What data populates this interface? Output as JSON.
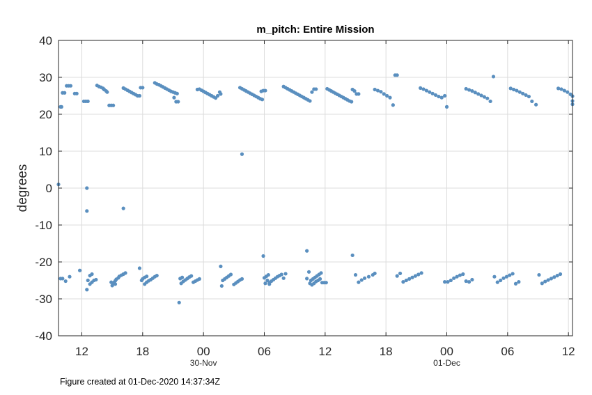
{
  "footer": "Figure created at 01-Dec-2020 14:37:34Z",
  "chart_data": {
    "type": "scatter",
    "title": "m_pitch: Entire Mission",
    "xlabel": "",
    "ylabel": "degrees",
    "x_unit": "hours relative to 30-Nov-2020 00:00",
    "xlim": [
      -14.3,
      36.4
    ],
    "ylim": [
      -40,
      40
    ],
    "grid": true,
    "color": "#5a8fbf",
    "xticks": [
      {
        "value": -12,
        "label": "12",
        "sub": ""
      },
      {
        "value": -6,
        "label": "18",
        "sub": ""
      },
      {
        "value": 0,
        "label": "00",
        "sub": "30-Nov"
      },
      {
        "value": 6,
        "label": "06",
        "sub": ""
      },
      {
        "value": 12,
        "label": "12",
        "sub": ""
      },
      {
        "value": 18,
        "label": "18",
        "sub": ""
      },
      {
        "value": 24,
        "label": "00",
        "sub": "01-Dec"
      },
      {
        "value": 30,
        "label": "06",
        "sub": ""
      },
      {
        "value": 36,
        "label": "12",
        "sub": ""
      }
    ],
    "yticks": [
      -40,
      -30,
      -20,
      -10,
      0,
      10,
      20,
      30,
      40
    ],
    "points": [
      [
        -14.3,
        1
      ],
      [
        -14.1,
        22
      ],
      [
        -14.0,
        22
      ],
      [
        -13.9,
        25.8
      ],
      [
        -13.7,
        25.8
      ],
      [
        -13.5,
        27.7
      ],
      [
        -13.3,
        27.7
      ],
      [
        -13.1,
        27.7
      ],
      [
        -12.7,
        25.6
      ],
      [
        -12.5,
        25.6
      ],
      [
        -11.8,
        23.5
      ],
      [
        -11.6,
        23.5
      ],
      [
        -11.4,
        23.5
      ],
      [
        -10.5,
        27.8
      ],
      [
        -10.3,
        27.5
      ],
      [
        -10.1,
        27.3
      ],
      [
        -9.9,
        27
      ],
      [
        -9.8,
        26.7
      ],
      [
        -9.6,
        26.3
      ],
      [
        -9.5,
        26
      ],
      [
        -9.3,
        22.4
      ],
      [
        -9.1,
        22.4
      ],
      [
        -8.9,
        22.4
      ],
      [
        -7.9,
        27.1
      ],
      [
        -7.7,
        26.8
      ],
      [
        -7.5,
        26.5
      ],
      [
        -7.3,
        26.2
      ],
      [
        -7.1,
        25.9
      ],
      [
        -6.9,
        25.6
      ],
      [
        -6.7,
        25.3
      ],
      [
        -6.5,
        25
      ],
      [
        -6.3,
        25
      ],
      [
        -6.2,
        27.2
      ],
      [
        -6.0,
        27.2
      ],
      [
        -4.8,
        28.5
      ],
      [
        -4.6,
        28.2
      ],
      [
        -4.4,
        28
      ],
      [
        -4.2,
        27.7
      ],
      [
        -4.0,
        27.4
      ],
      [
        -3.8,
        27.1
      ],
      [
        -3.6,
        26.8
      ],
      [
        -3.4,
        26.5
      ],
      [
        -3.2,
        26.2
      ],
      [
        -3.0,
        26
      ],
      [
        -2.8,
        25.8
      ],
      [
        -2.6,
        25.6
      ],
      [
        -2.9,
        24.5
      ],
      [
        -2.7,
        23.4
      ],
      [
        -2.5,
        23.4
      ],
      [
        -0.6,
        26.7
      ],
      [
        -0.4,
        26.8
      ],
      [
        -0.2,
        26.5
      ],
      [
        0.0,
        26.2
      ],
      [
        0.2,
        25.9
      ],
      [
        0.4,
        25.6
      ],
      [
        0.6,
        25.3
      ],
      [
        0.8,
        25
      ],
      [
        1.0,
        24.7
      ],
      [
        1.2,
        24.4
      ],
      [
        1.4,
        25
      ],
      [
        1.6,
        26
      ],
      [
        1.7,
        25.5
      ],
      [
        3.6,
        27.2
      ],
      [
        3.8,
        26.9
      ],
      [
        4.0,
        26.6
      ],
      [
        4.2,
        26.3
      ],
      [
        4.4,
        26
      ],
      [
        4.6,
        25.7
      ],
      [
        4.8,
        25.4
      ],
      [
        5.0,
        25.1
      ],
      [
        5.2,
        24.8
      ],
      [
        5.4,
        24.5
      ],
      [
        5.6,
        24.2
      ],
      [
        5.8,
        24
      ],
      [
        5.7,
        26.2
      ],
      [
        5.9,
        26.4
      ],
      [
        6.1,
        26.4
      ],
      [
        7.9,
        27.5
      ],
      [
        8.1,
        27.2
      ],
      [
        8.3,
        26.9
      ],
      [
        8.5,
        26.6
      ],
      [
        8.7,
        26.3
      ],
      [
        8.9,
        26
      ],
      [
        9.1,
        25.7
      ],
      [
        9.3,
        25.4
      ],
      [
        9.5,
        25.1
      ],
      [
        9.7,
        24.8
      ],
      [
        9.9,
        24.5
      ],
      [
        10.1,
        24.2
      ],
      [
        10.3,
        23.9
      ],
      [
        10.5,
        23.6
      ],
      [
        10.7,
        26
      ],
      [
        10.9,
        26.8
      ],
      [
        11.1,
        26.8
      ],
      [
        12.2,
        26.9
      ],
      [
        12.4,
        26.6
      ],
      [
        12.6,
        26.3
      ],
      [
        12.8,
        26
      ],
      [
        13.0,
        25.7
      ],
      [
        13.2,
        25.4
      ],
      [
        13.4,
        25.1
      ],
      [
        13.6,
        24.8
      ],
      [
        13.8,
        24.5
      ],
      [
        14.0,
        24.2
      ],
      [
        14.2,
        23.9
      ],
      [
        14.4,
        23.6
      ],
      [
        14.6,
        23.4
      ],
      [
        14.7,
        26.7
      ],
      [
        14.9,
        26.3
      ],
      [
        15.1,
        25.5
      ],
      [
        15.3,
        25.5
      ],
      [
        16.9,
        26.7
      ],
      [
        17.2,
        26.4
      ],
      [
        17.5,
        26.1
      ],
      [
        17.8,
        25.5
      ],
      [
        18.1,
        25
      ],
      [
        18.4,
        24.5
      ],
      [
        18.7,
        22.5
      ],
      [
        18.9,
        30.6
      ],
      [
        19.1,
        30.6
      ],
      [
        21.4,
        27.1
      ],
      [
        21.7,
        26.8
      ],
      [
        22.0,
        26.4
      ],
      [
        22.3,
        26
      ],
      [
        22.6,
        25.6
      ],
      [
        22.9,
        25.2
      ],
      [
        23.2,
        24.8
      ],
      [
        23.5,
        24.5
      ],
      [
        23.8,
        25
      ],
      [
        24.0,
        22
      ],
      [
        25.9,
        26.9
      ],
      [
        26.2,
        26.6
      ],
      [
        26.5,
        26.3
      ],
      [
        26.8,
        25.9
      ],
      [
        27.1,
        25.5
      ],
      [
        27.4,
        25.1
      ],
      [
        27.7,
        24.7
      ],
      [
        28.0,
        24.3
      ],
      [
        28.3,
        23.5
      ],
      [
        28.6,
        30.2
      ],
      [
        30.3,
        27
      ],
      [
        30.6,
        26.7
      ],
      [
        30.9,
        26.4
      ],
      [
        31.2,
        26
      ],
      [
        31.5,
        25.6
      ],
      [
        31.8,
        25.2
      ],
      [
        32.1,
        24.8
      ],
      [
        32.4,
        23.5
      ],
      [
        32.8,
        22.6
      ],
      [
        35.0,
        27
      ],
      [
        35.3,
        26.8
      ],
      [
        35.6,
        26.4
      ],
      [
        35.9,
        26
      ],
      [
        36.2,
        25.4
      ],
      [
        36.4,
        24.9
      ],
      [
        36.6,
        23.6
      ],
      [
        36.8,
        22.7
      ],
      [
        -11.5,
        0
      ],
      [
        -11.5,
        -6.2
      ],
      [
        -7.9,
        -5.5
      ],
      [
        3.8,
        9.2
      ],
      [
        5.9,
        -18.4
      ],
      [
        10.2,
        -17
      ],
      [
        14.7,
        -18.2
      ],
      [
        -14.1,
        -24.5
      ],
      [
        -13.9,
        -24.5
      ],
      [
        -13.6,
        -25.2
      ],
      [
        -13.2,
        -24
      ],
      [
        -12.2,
        -22.3
      ],
      [
        -11.5,
        -27.5
      ],
      [
        -11.4,
        -25
      ],
      [
        -11.2,
        -23.7
      ],
      [
        -11.0,
        -23.3
      ],
      [
        -11.2,
        -26
      ],
      [
        -11.0,
        -25.5
      ],
      [
        -10.8,
        -25
      ],
      [
        -10.6,
        -24.8
      ],
      [
        -9.0,
        -26.4
      ],
      [
        -8.9,
        -25.9
      ],
      [
        -8.8,
        -25.5
      ],
      [
        -8.7,
        -25.1
      ],
      [
        -8.6,
        -24.7
      ],
      [
        -8.4,
        -24.3
      ],
      [
        -8.3,
        -23.9
      ],
      [
        -8.1,
        -23.6
      ],
      [
        -7.9,
        -23.3
      ],
      [
        -7.7,
        -23
      ],
      [
        -9.1,
        -25.5
      ],
      [
        -8.7,
        -26
      ],
      [
        -6.3,
        -21.7
      ],
      [
        -6.1,
        -25
      ],
      [
        -6.0,
        -24.6
      ],
      [
        -5.8,
        -24.2
      ],
      [
        -5.6,
        -23.9
      ],
      [
        -5.8,
        -26
      ],
      [
        -5.6,
        -25.5
      ],
      [
        -5.4,
        -25.1
      ],
      [
        -5.2,
        -24.8
      ],
      [
        -5.0,
        -24.4
      ],
      [
        -4.8,
        -24
      ],
      [
        -4.6,
        -23.7
      ],
      [
        -2.4,
        -31
      ],
      [
        -2.2,
        -25.8
      ],
      [
        -2.0,
        -25.3
      ],
      [
        -1.8,
        -24.9
      ],
      [
        -1.6,
        -24.5
      ],
      [
        -1.4,
        -24.1
      ],
      [
        -1.2,
        -23.8
      ],
      [
        -1.0,
        -25.5
      ],
      [
        -0.8,
        -25.2
      ],
      [
        -0.6,
        -24.9
      ],
      [
        -0.4,
        -24.6
      ],
      [
        -2.3,
        -24.5
      ],
      [
        -2.1,
        -24.2
      ],
      [
        1.7,
        -21.2
      ],
      [
        1.8,
        -26.5
      ],
      [
        1.9,
        -25
      ],
      [
        2.1,
        -24.6
      ],
      [
        2.3,
        -24.2
      ],
      [
        2.5,
        -23.8
      ],
      [
        2.7,
        -23.4
      ],
      [
        3.0,
        -26.1
      ],
      [
        3.2,
        -25.7
      ],
      [
        3.4,
        -25.3
      ],
      [
        3.6,
        -24.9
      ],
      [
        3.8,
        -24.6
      ],
      [
        6.0,
        -24.3
      ],
      [
        6.2,
        -23.9
      ],
      [
        6.4,
        -23.5
      ],
      [
        6.3,
        -25
      ],
      [
        6.5,
        -25.6
      ],
      [
        6.7,
        -25.2
      ],
      [
        6.9,
        -24.8
      ],
      [
        7.1,
        -24.4
      ],
      [
        7.3,
        -24
      ],
      [
        7.5,
        -23.7
      ],
      [
        7.7,
        -23.4
      ],
      [
        7.9,
        -24.4
      ],
      [
        8.1,
        -23.2
      ],
      [
        6.1,
        -25.8
      ],
      [
        6.5,
        -26
      ],
      [
        10.2,
        -24.5
      ],
      [
        10.4,
        -22.7
      ],
      [
        10.6,
        -25
      ],
      [
        10.8,
        -24.6
      ],
      [
        11.0,
        -24.2
      ],
      [
        11.2,
        -23.8
      ],
      [
        11.4,
        -23.4
      ],
      [
        11.6,
        -23
      ],
      [
        10.5,
        -25.8
      ],
      [
        10.7,
        -26.2
      ],
      [
        10.9,
        -25.8
      ],
      [
        11.1,
        -25.3
      ],
      [
        11.3,
        -25
      ],
      [
        11.5,
        -24.6
      ],
      [
        11.7,
        -25.6
      ],
      [
        11.9,
        -25.6
      ],
      [
        12.1,
        -25.6
      ],
      [
        15.0,
        -23.5
      ],
      [
        15.3,
        -25.5
      ],
      [
        15.6,
        -24.9
      ],
      [
        15.9,
        -24.4
      ],
      [
        16.3,
        -24
      ],
      [
        16.7,
        -23.5
      ],
      [
        16.9,
        -23.1
      ],
      [
        19.1,
        -23.8
      ],
      [
        19.4,
        -23.1
      ],
      [
        19.7,
        -25.4
      ],
      [
        20.0,
        -25
      ],
      [
        20.3,
        -24.6
      ],
      [
        20.6,
        -24.2
      ],
      [
        20.9,
        -23.8
      ],
      [
        21.2,
        -23.4
      ],
      [
        21.5,
        -23
      ],
      [
        23.8,
        -25.4
      ],
      [
        24.1,
        -25.4
      ],
      [
        24.4,
        -25
      ],
      [
        24.7,
        -24.4
      ],
      [
        25.0,
        -24
      ],
      [
        25.3,
        -23.6
      ],
      [
        25.6,
        -23.3
      ],
      [
        25.9,
        -25.2
      ],
      [
        26.2,
        -25.4
      ],
      [
        26.5,
        -24.8
      ],
      [
        28.7,
        -24
      ],
      [
        29.0,
        -25.5
      ],
      [
        29.3,
        -25
      ],
      [
        29.6,
        -24.4
      ],
      [
        29.9,
        -24
      ],
      [
        30.2,
        -23.6
      ],
      [
        30.5,
        -23.2
      ],
      [
        30.8,
        -25.9
      ],
      [
        31.1,
        -25.4
      ],
      [
        33.1,
        -23.5
      ],
      [
        33.4,
        -25.8
      ],
      [
        33.7,
        -25.3
      ],
      [
        34.0,
        -24.9
      ],
      [
        34.3,
        -24.5
      ],
      [
        34.6,
        -24.1
      ],
      [
        34.9,
        -23.7
      ],
      [
        35.2,
        -23.3
      ]
    ]
  }
}
